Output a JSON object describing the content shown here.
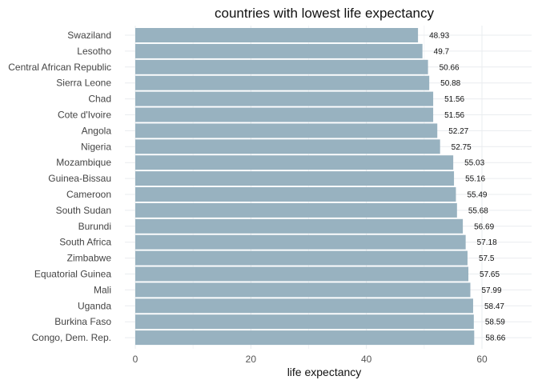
{
  "chart_data": {
    "type": "bar",
    "orientation": "horizontal",
    "title": "countries with lowest life expectancy",
    "xlabel": "life expectancy",
    "ylabel": "",
    "xlim": [
      0,
      65
    ],
    "xticks": [
      0,
      20,
      40,
      60
    ],
    "grid": true,
    "bar_color": "#98b2c0",
    "categories": [
      "Swaziland",
      "Lesotho",
      "Central African Republic",
      "Sierra Leone",
      "Chad",
      "Cote d'Ivoire",
      "Angola",
      "Nigeria",
      "Mozambique",
      "Guinea-Bissau",
      "Cameroon",
      "South Sudan",
      "Burundi",
      "South Africa",
      "Zimbabwe",
      "Equatorial Guinea",
      "Mali",
      "Uganda",
      "Burkina Faso",
      "Congo, Dem. Rep."
    ],
    "values": [
      48.93,
      49.7,
      50.66,
      50.88,
      51.56,
      51.56,
      52.27,
      52.75,
      55.03,
      55.16,
      55.49,
      55.68,
      56.69,
      57.18,
      57.5,
      57.65,
      57.99,
      58.47,
      58.59,
      58.66
    ],
    "value_labels": [
      "48.93",
      "49.7",
      "50.66",
      "50.88",
      "51.56",
      "51.56",
      "52.27",
      "52.75",
      "55.03",
      "55.16",
      "55.49",
      "55.68",
      "56.69",
      "57.18",
      "57.5",
      "57.65",
      "57.99",
      "58.47",
      "58.59",
      "58.66"
    ]
  }
}
